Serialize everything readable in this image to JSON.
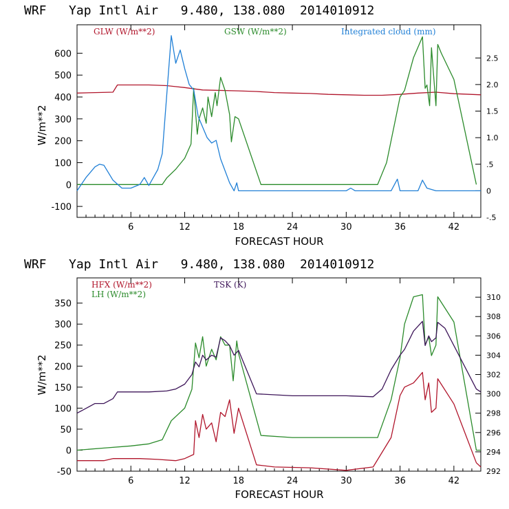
{
  "colors": {
    "red": "#b0142a",
    "green": "#2a8a2a",
    "blue": "#1f7fd6",
    "purple": "#3c1458"
  },
  "chart_data": [
    {
      "type": "line",
      "title": "WRF   Yap Intl Air   9.480, 138.080  2014010912",
      "xlabel": "FORECAST HOUR",
      "ylabel": "W/m**2",
      "xlim": [
        0,
        45
      ],
      "ylim": [
        -150,
        730
      ],
      "y2lim": [
        -0.5,
        3.125
      ],
      "xticks": [
        "6",
        "12",
        "18",
        "24",
        "30",
        "36",
        "42"
      ],
      "yticks": [
        "-100",
        "0",
        "100",
        "200",
        "300",
        "400",
        "500",
        "600"
      ],
      "y2ticks": [
        "-.5",
        "0",
        ".5",
        "1.0",
        "1.5",
        "2.0",
        "2.5"
      ],
      "series": [
        {
          "name": "GLW (W/m**2)",
          "axis": "left",
          "color": "#b0142a",
          "x": [
            0,
            2,
            4,
            4.5,
            8,
            10,
            12,
            14,
            18,
            20,
            22,
            24,
            26,
            28,
            30,
            32,
            34,
            36,
            38,
            40,
            42,
            45
          ],
          "y": [
            418,
            420,
            422,
            455,
            455,
            452,
            443,
            432,
            428,
            425,
            420,
            418,
            416,
            412,
            410,
            408,
            408,
            412,
            418,
            422,
            415,
            410
          ]
        },
        {
          "name": "GSW (W/m**2)",
          "axis": "left",
          "color": "#2a8a2a",
          "x": [
            0,
            9.5,
            10,
            11,
            12,
            12.7,
            13,
            13.4,
            13.6,
            14,
            14.4,
            14.6,
            15,
            15.4,
            15.6,
            16,
            16.5,
            17,
            17.2,
            17.6,
            18,
            20.5,
            33.5,
            34.5,
            35.5,
            36,
            36.5,
            37.5,
            38.5,
            38.8,
            39,
            39.3,
            39.5,
            40,
            40.2,
            40.6,
            42,
            44.5
          ],
          "y": [
            0,
            0,
            30,
            70,
            120,
            185,
            440,
            230,
            300,
            350,
            280,
            400,
            310,
            420,
            360,
            490,
            430,
            320,
            195,
            310,
            300,
            0,
            0,
            100,
            300,
            400,
            430,
            580,
            675,
            440,
            455,
            360,
            625,
            360,
            640,
            600,
            480,
            0
          ]
        },
        {
          "name": "Integrated cloud (mm)",
          "axis": "right",
          "color": "#1f7fd6",
          "x": [
            0,
            1,
            2,
            2.5,
            3,
            4,
            5,
            6,
            7,
            7.5,
            8,
            9,
            9.5,
            10,
            10.5,
            11,
            11.5,
            12,
            12.5,
            13,
            13.5,
            14,
            14.5,
            15,
            15.5,
            16,
            17,
            17.5,
            17.8,
            18,
            20,
            25,
            30,
            30.5,
            31,
            35,
            35.7,
            36,
            38,
            38.5,
            39,
            40,
            42,
            45
          ],
          "y": [
            0,
            0.25,
            0.45,
            0.5,
            0.48,
            0.2,
            0.05,
            0.05,
            0.12,
            0.25,
            0.1,
            0.4,
            0.7,
            1.8,
            2.92,
            2.4,
            2.65,
            2.3,
            2.0,
            1.9,
            1.4,
            1.2,
            1.0,
            0.9,
            0.95,
            0.6,
            0.15,
            0,
            0.15,
            0,
            0,
            0,
            0,
            0.05,
            0,
            0,
            0.22,
            0,
            0,
            0.2,
            0.05,
            0,
            0,
            0
          ]
        }
      ]
    },
    {
      "type": "line",
      "title": "WRF   Yap Intl Air   9.480, 138.080  2014010912",
      "xlabel": "FORECAST HOUR",
      "ylabel": "W/m**2",
      "xlim": [
        0,
        45
      ],
      "ylim": [
        -50,
        410
      ],
      "y2lim": [
        292,
        312
      ],
      "xticks": [
        "6",
        "12",
        "18",
        "24",
        "30",
        "36",
        "42"
      ],
      "yticks": [
        "-50",
        "0",
        "50",
        "100",
        "150",
        "200",
        "250",
        "300",
        "350"
      ],
      "y2ticks": [
        "292",
        "294",
        "296",
        "298",
        "300",
        "302",
        "304",
        "306",
        "308",
        "310"
      ],
      "series": [
        {
          "name": "HFX (W/m**2)",
          "axis": "left",
          "color": "#b0142a",
          "x": [
            0,
            3,
            4,
            7,
            9,
            11,
            12,
            13,
            13.2,
            13.6,
            14,
            14.4,
            15,
            15.5,
            16,
            16.5,
            17,
            17.5,
            18,
            20,
            22,
            26,
            30,
            33,
            35,
            36,
            36.5,
            37.5,
            38.5,
            38.8,
            39.2,
            39.5,
            40,
            40.2,
            42,
            44.5,
            45
          ],
          "y": [
            -25,
            -25,
            -20,
            -20,
            -22,
            -25,
            -20,
            -10,
            70,
            30,
            85,
            50,
            65,
            20,
            90,
            80,
            120,
            40,
            100,
            -35,
            -40,
            -42,
            -48,
            -40,
            30,
            130,
            150,
            160,
            185,
            120,
            160,
            90,
            100,
            170,
            110,
            -30,
            -40
          ]
        },
        {
          "name": "LH (W/m**2)",
          "axis": "left",
          "color": "#2a8a2a",
          "x": [
            0,
            3,
            6,
            8,
            9.5,
            10.5,
            12,
            12.8,
            13.2,
            13.6,
            14,
            14.4,
            15,
            15.5,
            16,
            16.5,
            17,
            17.4,
            17.8,
            18,
            20.5,
            24,
            30,
            33.5,
            35,
            36,
            36.5,
            37.5,
            38.5,
            38.8,
            39.2,
            39.5,
            40,
            40.2,
            42,
            44.5,
            45
          ],
          "y": [
            0,
            5,
            10,
            15,
            25,
            70,
            100,
            145,
            255,
            220,
            270,
            200,
            240,
            215,
            270,
            250,
            250,
            165,
            260,
            230,
            35,
            30,
            30,
            30,
            120,
            220,
            300,
            365,
            370,
            250,
            270,
            225,
            250,
            365,
            305,
            0,
            0
          ]
        },
        {
          "name": "TSK (K)",
          "axis": "right",
          "color": "#3c1458",
          "x": [
            0,
            1,
            2,
            3,
            4,
            4.5,
            8,
            10,
            11,
            12,
            12.8,
            13.2,
            13.6,
            14,
            14.4,
            15,
            15.5,
            16,
            16.5,
            17,
            17.5,
            18,
            20,
            24,
            30,
            33,
            34,
            35,
            36,
            36.5,
            37.5,
            38.5,
            38.8,
            39.2,
            39.5,
            40,
            40.2,
            41,
            42,
            44.5,
            45
          ],
          "y": [
            298,
            298.5,
            299,
            299,
            299.5,
            300.2,
            300.2,
            300.3,
            300.5,
            301,
            302,
            303.3,
            302.8,
            304,
            303.5,
            304,
            303.8,
            305.8,
            305.5,
            305,
            304,
            304.5,
            300,
            299.8,
            299.8,
            299.7,
            300.5,
            302.5,
            304,
            304.6,
            306.5,
            307.5,
            305,
            306,
            305.4,
            305.8,
            307.4,
            306.8,
            305,
            300.5,
            300.2
          ]
        }
      ]
    }
  ]
}
